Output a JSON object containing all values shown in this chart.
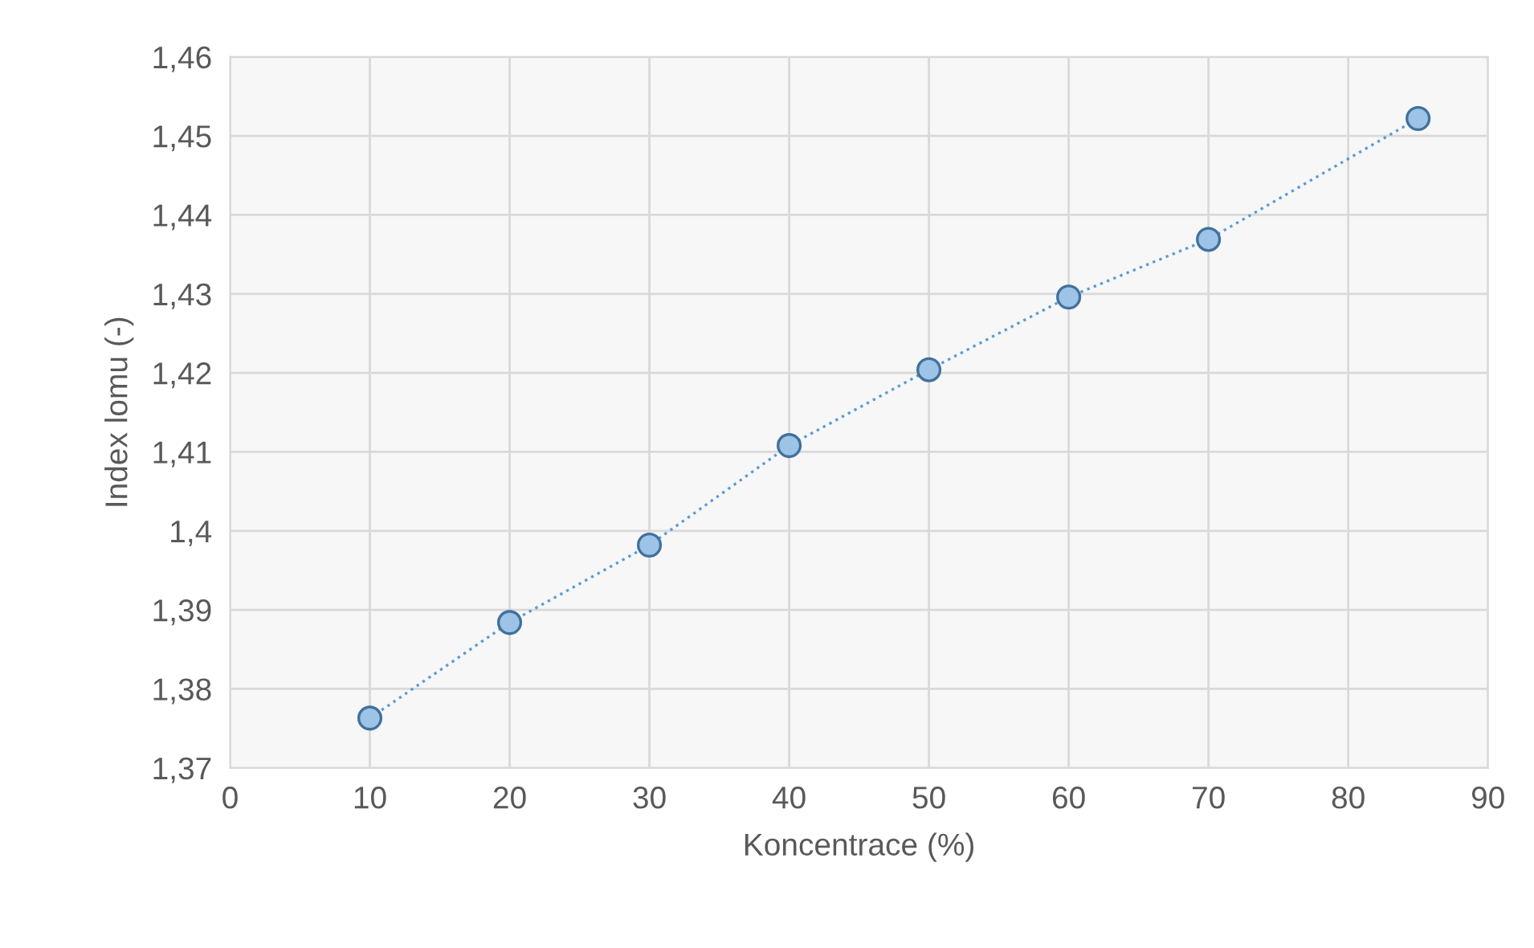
{
  "chart_data": {
    "type": "line",
    "xlabel": "Koncentrace (%)",
    "ylabel": "Index lomu (-)",
    "x": [
      10,
      20,
      30,
      40,
      50,
      60,
      70,
      85
    ],
    "series": [
      {
        "color": "#5b9bd5",
        "values": [
          1.3763,
          1.3884,
          1.3982,
          1.4108,
          1.4204,
          1.4296,
          1.4369,
          1.4522
        ]
      }
    ],
    "marker": "circle",
    "line_style": "dotted",
    "grid": true,
    "xlim": [
      0,
      90
    ],
    "xticks": [
      0,
      10,
      20,
      30,
      40,
      50,
      60,
      70,
      80,
      90
    ],
    "ylim": [
      1.37,
      1.46
    ],
    "yticks": [
      {
        "value": 1.37,
        "label": "1,37"
      },
      {
        "value": 1.38,
        "label": "1,38"
      },
      {
        "value": 1.39,
        "label": "1,39"
      },
      {
        "value": 1.4,
        "label": "1,4"
      },
      {
        "value": 1.41,
        "label": "1,41"
      },
      {
        "value": 1.42,
        "label": "1,42"
      },
      {
        "value": 1.43,
        "label": "1,43"
      },
      {
        "value": 1.44,
        "label": "1,44"
      },
      {
        "value": 1.45,
        "label": "1,45"
      },
      {
        "value": 1.46,
        "label": "1,46"
      }
    ]
  }
}
